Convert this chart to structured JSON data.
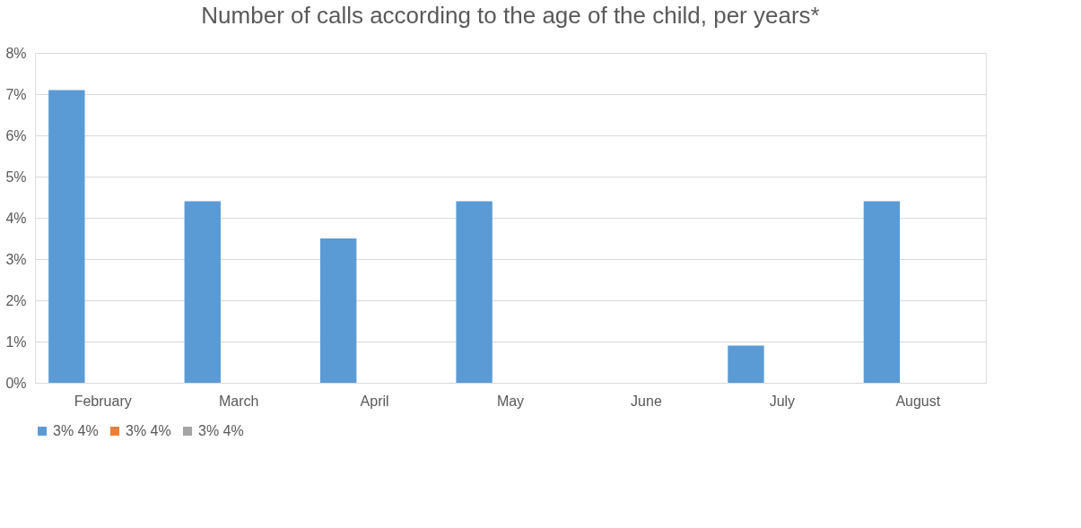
{
  "chart_data": {
    "type": "bar",
    "title": "Number of calls according to the age of the child, per years*",
    "categories": [
      "February",
      "March",
      "April",
      "May",
      "June",
      "July",
      "August"
    ],
    "series": [
      {
        "name": "3% 4%",
        "color": "#5b9bd5",
        "values": [
          7.1,
          4.4,
          3.5,
          4.4,
          0,
          0.9,
          4.4
        ]
      },
      {
        "name": "3% 4%",
        "color": "#ed7d31",
        "values": [
          null,
          null,
          null,
          null,
          null,
          null,
          null
        ]
      },
      {
        "name": "3% 4%",
        "color": "#a5a5a5",
        "values": [
          null,
          null,
          null,
          null,
          null,
          null,
          null
        ]
      }
    ],
    "ylim": [
      0,
      8
    ],
    "yticks": [
      {
        "value": 0,
        "label": "0%"
      },
      {
        "value": 1,
        "label": "1%"
      },
      {
        "value": 2,
        "label": "2%"
      },
      {
        "value": 3,
        "label": "3%"
      },
      {
        "value": 4,
        "label": "4%"
      },
      {
        "value": 5,
        "label": "5%"
      },
      {
        "value": 6,
        "label": "6%"
      },
      {
        "value": 7,
        "label": "7%"
      },
      {
        "value": 8,
        "label": "8%"
      }
    ],
    "grid": "y",
    "legend": "bottom"
  }
}
